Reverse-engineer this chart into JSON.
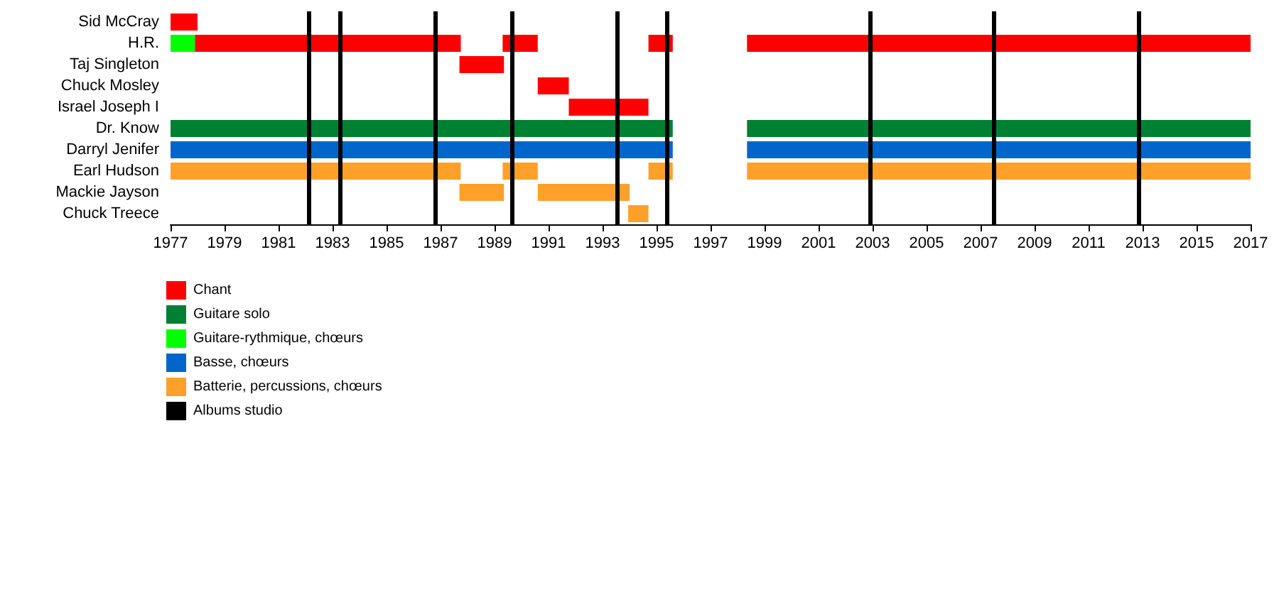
{
  "chart_data": {
    "type": "bar",
    "orientation": "horizontal",
    "categories": [
      "Sid McCray",
      "H.R.",
      "Taj Singleton",
      "Chuck Mosley",
      "Israel Joseph I",
      "Dr. Know",
      "Darryl Jenifer",
      "Earl Hudson",
      "Mackie Jayson",
      "Chuck Treece"
    ],
    "series": [
      {
        "name": "Chant",
        "color": "#ff0000",
        "base": [
          1977,
          1977.9,
          1987.7,
          1990.6,
          1991.75,
          null,
          null,
          null,
          null,
          null
        ],
        "values": [
          1,
          9.85,
          1.65,
          1.15,
          2.95,
          null,
          null,
          null,
          null,
          null
        ]
      },
      {
        "color": "#ff0000",
        "base": [
          null,
          1989.3,
          null,
          null,
          null,
          null,
          null,
          null,
          null,
          null
        ],
        "values": [
          null,
          1.3,
          null,
          null,
          null,
          null,
          null,
          null,
          null,
          null
        ]
      },
      {
        "color": "#ff0000",
        "base": [
          null,
          1994.7,
          null,
          null,
          null,
          null,
          null,
          null,
          null,
          null
        ],
        "values": [
          null,
          0.9,
          null,
          null,
          null,
          null,
          null,
          null,
          null,
          null
        ]
      },
      {
        "color": "#ff0000",
        "base": [
          null,
          1998.35,
          null,
          null,
          null,
          null,
          null,
          null,
          null,
          null
        ],
        "values": [
          null,
          18.65,
          null,
          null,
          null,
          null,
          null,
          null,
          null,
          null
        ]
      },
      {
        "name": "Guitare solo",
        "color": "#008033",
        "base": [
          null,
          null,
          null,
          null,
          null,
          1977,
          null,
          null,
          null,
          null
        ],
        "values": [
          null,
          null,
          null,
          null,
          null,
          18.6,
          null,
          null,
          null,
          null
        ]
      },
      {
        "color": "#008033",
        "base": [
          null,
          null,
          null,
          null,
          null,
          1998.35,
          null,
          null,
          null,
          null
        ],
        "values": [
          null,
          null,
          null,
          null,
          null,
          18.65,
          null,
          null,
          null,
          null
        ]
      },
      {
        "name": "Guitare-rythmique, chœurs",
        "color": "#00ff00",
        "base": [
          null,
          1977,
          null,
          null,
          null,
          null,
          null,
          null,
          null,
          null
        ],
        "values": [
          null,
          0.9,
          null,
          null,
          null,
          null,
          null,
          null,
          null,
          null
        ]
      },
      {
        "name": "Basse, chœurs",
        "color": "#0066cc",
        "base": [
          null,
          null,
          null,
          null,
          null,
          null,
          1977,
          null,
          null,
          null
        ],
        "values": [
          null,
          null,
          null,
          null,
          null,
          null,
          18.6,
          null,
          null,
          null
        ]
      },
      {
        "color": "#0066cc",
        "base": [
          null,
          null,
          null,
          null,
          null,
          null,
          1998.35,
          null,
          null,
          null
        ],
        "values": [
          null,
          null,
          null,
          null,
          null,
          null,
          18.65,
          null,
          null,
          null
        ]
      },
      {
        "name": "Batterie, percussions, chœurs",
        "color": "#ffa02a",
        "base": [
          null,
          null,
          null,
          null,
          null,
          null,
          null,
          1977,
          1987.7,
          1993.95
        ],
        "values": [
          null,
          null,
          null,
          null,
          null,
          null,
          null,
          10.75,
          1.65,
          0.75
        ]
      },
      {
        "color": "#ffa02a",
        "base": [
          null,
          null,
          null,
          null,
          null,
          null,
          null,
          1989.3,
          1990.6,
          null
        ],
        "values": [
          null,
          null,
          null,
          null,
          null,
          null,
          null,
          1.3,
          3.4,
          null
        ]
      },
      {
        "color": "#ffa02a",
        "base": [
          null,
          null,
          null,
          null,
          null,
          null,
          null,
          1994.7,
          null,
          null
        ],
        "values": [
          null,
          null,
          null,
          null,
          null,
          null,
          null,
          0.9,
          null,
          null
        ]
      },
      {
        "color": "#ffa02a",
        "base": [
          null,
          null,
          null,
          null,
          null,
          null,
          null,
          1998.35,
          null,
          null
        ],
        "values": [
          null,
          null,
          null,
          null,
          null,
          null,
          null,
          18.65,
          null,
          null
        ]
      }
    ],
    "xlim": [
      1977,
      2017
    ],
    "xticks": [
      1977,
      1979,
      1981,
      1983,
      1985,
      1987,
      1989,
      1991,
      1993,
      1995,
      1997,
      1999,
      2001,
      2003,
      2005,
      2007,
      2009,
      2011,
      2013,
      2015,
      2017
    ],
    "ref_lines": [
      {
        "axis": "x",
        "value": 1982.1,
        "label": "Albums studio",
        "color": "#000000"
      },
      {
        "axis": "x",
        "value": 1983.3,
        "color": "#000000"
      },
      {
        "axis": "x",
        "value": 1986.8,
        "color": "#000000"
      },
      {
        "axis": "x",
        "value": 1989.65,
        "color": "#000000"
      },
      {
        "axis": "x",
        "value": 1993.55,
        "color": "#000000"
      },
      {
        "axis": "x",
        "value": 1995.4,
        "color": "#000000"
      },
      {
        "axis": "x",
        "value": 2002.9,
        "color": "#000000"
      },
      {
        "axis": "x",
        "value": 2007.5,
        "color": "#000000"
      },
      {
        "axis": "x",
        "value": 2012.85,
        "color": "#000000"
      }
    ],
    "grid": false,
    "legend": "bottom left"
  }
}
